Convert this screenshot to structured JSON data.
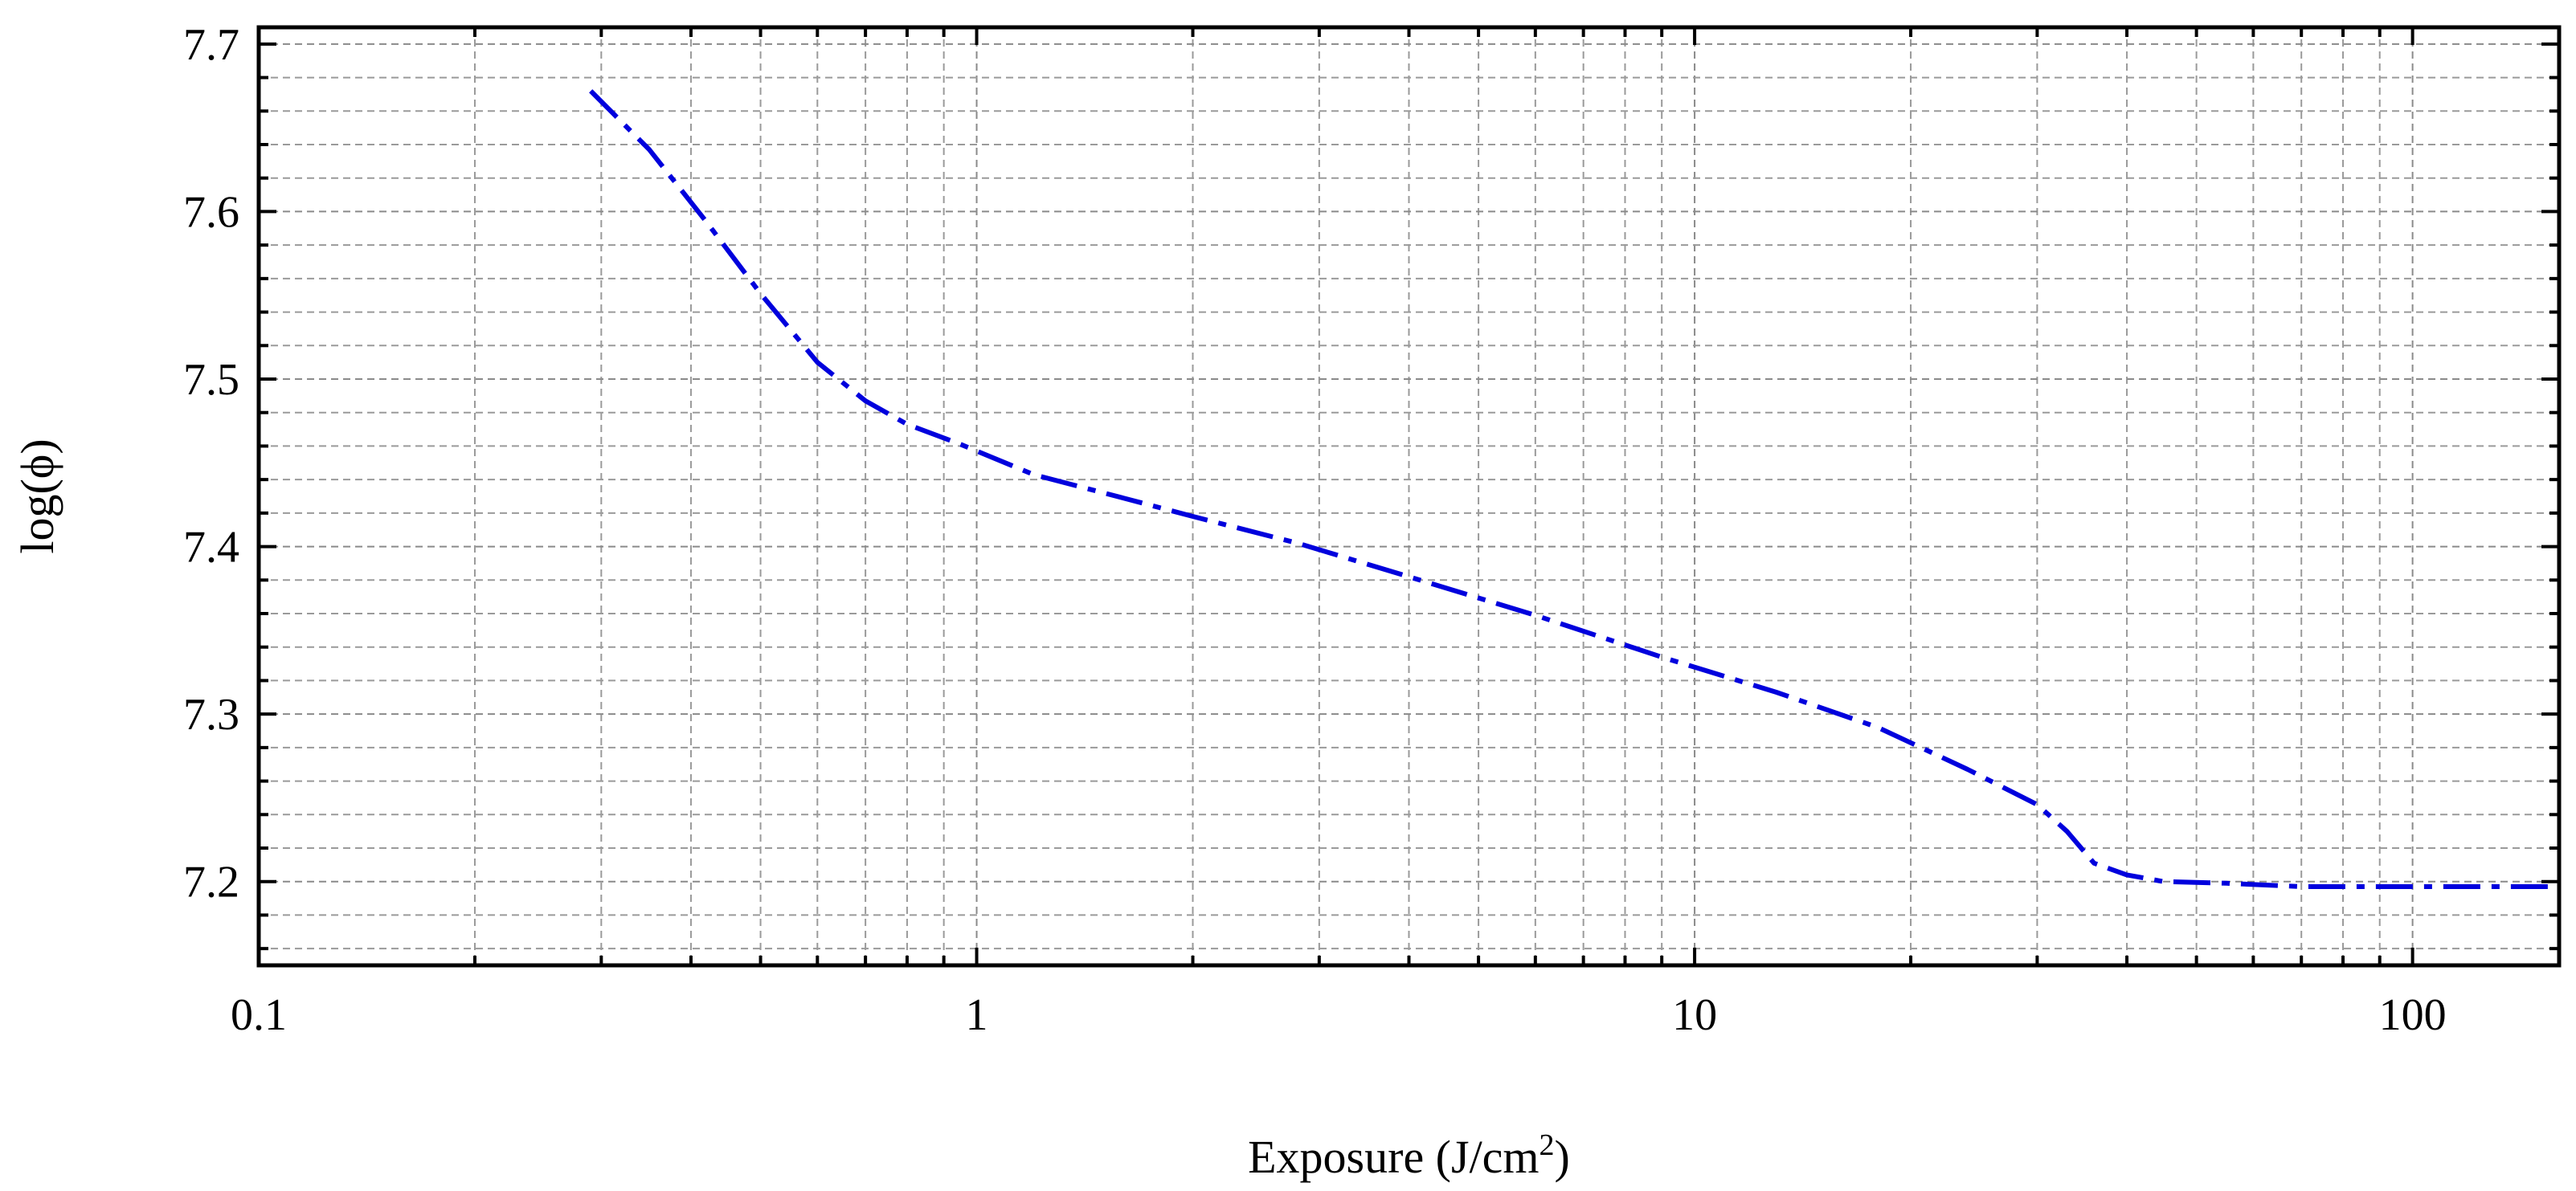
{
  "chart_data": {
    "type": "line",
    "xscale": "log",
    "xlabel": "Exposure (J/cm",
    "xlabel_sup": "2",
    "xlabel_close": ")",
    "ylabel": "log(ϕ)",
    "xlim": [
      0.1,
      160
    ],
    "ylim": [
      7.15,
      7.71
    ],
    "x_ticks": [
      0.1,
      1,
      10,
      100
    ],
    "x_tick_labels": [
      "0.1",
      "1",
      "10",
      "100"
    ],
    "y_ticks": [
      7.2,
      7.3,
      7.4,
      7.5,
      7.6,
      7.7
    ],
    "y_tick_labels": [
      "7.2",
      "7.3",
      "7.4",
      "7.5",
      "7.6",
      "7.7"
    ],
    "y_minor_step": 0.02,
    "grid": true,
    "line_style": "dash-dot",
    "series": [
      {
        "color": "#0000dd",
        "x": [
          0.29,
          0.35,
          0.42,
          0.5,
          0.6,
          0.7,
          0.8,
          0.95,
          1.2,
          1.6,
          2.0,
          2.8,
          4.0,
          6.0,
          9.0,
          13.0,
          18.0,
          24.0,
          30.0,
          33.0,
          36.0,
          40.0,
          45.0,
          55.0,
          70.0,
          90.0,
          120.0,
          160.0
        ],
        "y": [
          7.672,
          7.637,
          7.594,
          7.551,
          7.51,
          7.487,
          7.473,
          7.461,
          7.443,
          7.429,
          7.418,
          7.402,
          7.382,
          7.359,
          7.334,
          7.313,
          7.292,
          7.267,
          7.246,
          7.23,
          7.211,
          7.204,
          7.2,
          7.199,
          7.197,
          7.197,
          7.197,
          7.197
        ]
      }
    ]
  }
}
